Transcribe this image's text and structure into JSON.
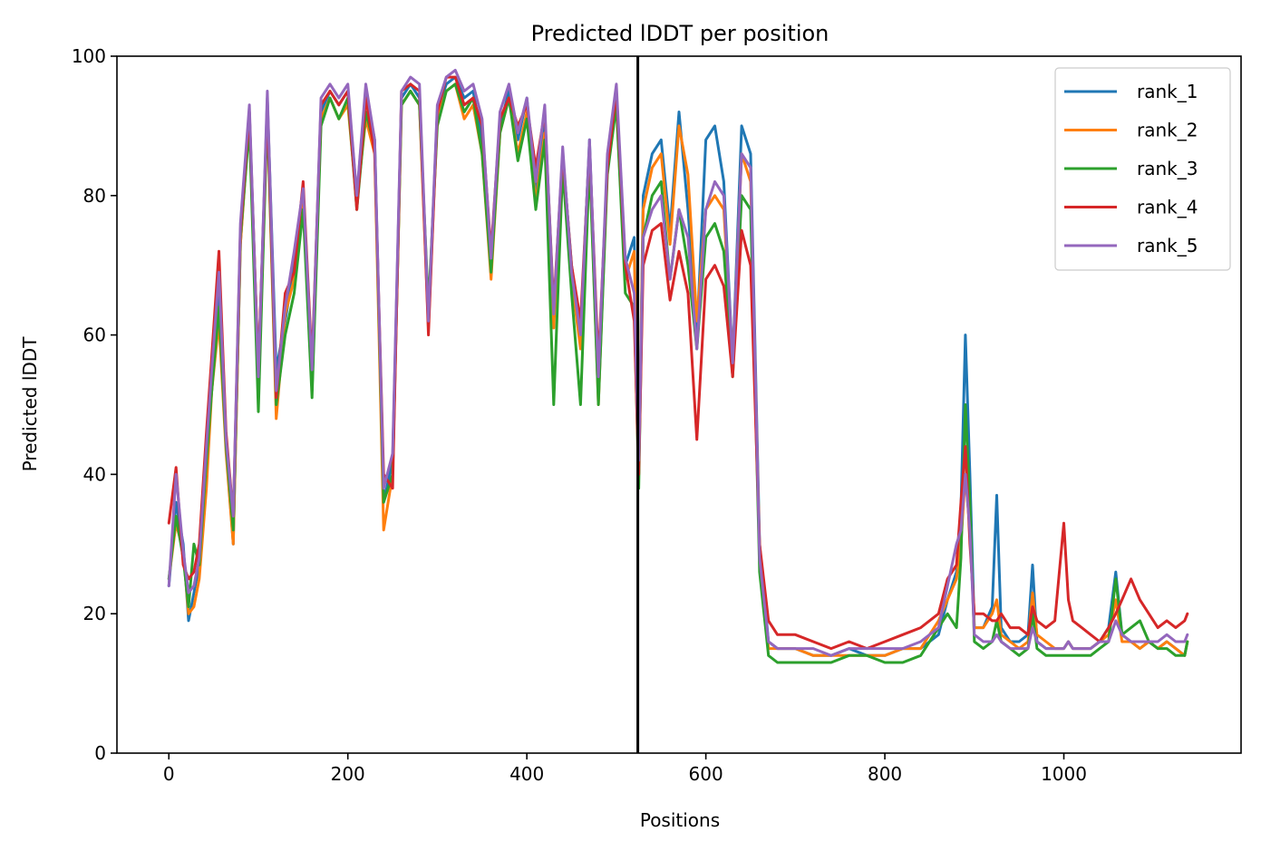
{
  "chart_data": {
    "type": "line",
    "title": "Predicted lDDT per position",
    "xlabel": "Positions",
    "ylabel": "Predicted lDDT",
    "xlim": [
      -58,
      1198
    ],
    "ylim": [
      0,
      100
    ],
    "x_ticks": [
      0,
      200,
      400,
      600,
      800,
      1000
    ],
    "y_ticks": [
      0,
      20,
      40,
      60,
      80,
      100
    ],
    "grid": false,
    "legend_position": "upper right",
    "divider": {
      "x": 524,
      "color": "#000000"
    },
    "x": [
      0,
      8,
      16,
      22,
      28,
      34,
      42,
      48,
      56,
      64,
      72,
      80,
      90,
      100,
      110,
      120,
      130,
      140,
      150,
      160,
      170,
      180,
      190,
      200,
      210,
      220,
      230,
      240,
      250,
      260,
      270,
      280,
      290,
      300,
      310,
      320,
      330,
      340,
      350,
      360,
      370,
      380,
      390,
      400,
      410,
      420,
      430,
      440,
      450,
      460,
      470,
      480,
      490,
      500,
      510,
      520,
      525,
      530,
      540,
      550,
      560,
      570,
      580,
      590,
      600,
      610,
      620,
      630,
      640,
      650,
      660,
      670,
      680,
      700,
      720,
      740,
      760,
      780,
      800,
      820,
      840,
      860,
      870,
      880,
      885,
      890,
      895,
      900,
      910,
      920,
      925,
      930,
      940,
      950,
      960,
      965,
      970,
      980,
      990,
      1000,
      1005,
      1010,
      1020,
      1030,
      1040,
      1050,
      1058,
      1065,
      1075,
      1085,
      1095,
      1105,
      1115,
      1125,
      1135,
      1138
    ],
    "series": [
      {
        "name": "rank_1",
        "color": "#1f77b4",
        "values": [
          24,
          36,
          30,
          19,
          23,
          27,
          45,
          52,
          66,
          44,
          30,
          73,
          92,
          53,
          94,
          55,
          62,
          70,
          80,
          52,
          92,
          95,
          93,
          95,
          80,
          95,
          88,
          36,
          42,
          94,
          96,
          94,
          62,
          92,
          96,
          97,
          94,
          95,
          88,
          70,
          90,
          95,
          88,
          94,
          80,
          91,
          62,
          86,
          70,
          60,
          88,
          52,
          85,
          95,
          70,
          74,
          40,
          80,
          86,
          88,
          75,
          92,
          78,
          60,
          88,
          90,
          82,
          56,
          90,
          86,
          30,
          16,
          15,
          15,
          14,
          14,
          15,
          14,
          14,
          15,
          15,
          17,
          22,
          26,
          35,
          60,
          40,
          18,
          18,
          21,
          37,
          18,
          16,
          16,
          17,
          27,
          16,
          15,
          15,
          15,
          16,
          15,
          15,
          15,
          16,
          18,
          26,
          17,
          16,
          15,
          16,
          15,
          16,
          15,
          14,
          16
        ]
      },
      {
        "name": "rank_2",
        "color": "#ff7f0e",
        "values": [
          25,
          33,
          29,
          20,
          21,
          25,
          38,
          52,
          62,
          43,
          30,
          73,
          91,
          55,
          92,
          48,
          63,
          68,
          79,
          54,
          91,
          94,
          91,
          93,
          79,
          91,
          86,
          32,
          40,
          93,
          95,
          93,
          61,
          91,
          95,
          96,
          91,
          93,
          86,
          68,
          89,
          94,
          86,
          92,
          79,
          89,
          61,
          85,
          68,
          58,
          86,
          50,
          84,
          93,
          68,
          72,
          40,
          78,
          84,
          86,
          73,
          90,
          83,
          62,
          78,
          80,
          78,
          56,
          86,
          82,
          29,
          15,
          15,
          15,
          14,
          14,
          14,
          14,
          14,
          15,
          15,
          19,
          22,
          25,
          30,
          40,
          32,
          18,
          18,
          20,
          22,
          17,
          16,
          15,
          16,
          23,
          17,
          16,
          15,
          15,
          16,
          15,
          15,
          15,
          16,
          17,
          22,
          16,
          16,
          15,
          16,
          15,
          16,
          15,
          14,
          16
        ]
      },
      {
        "name": "rank_3",
        "color": "#2ca02c",
        "values": [
          25,
          34,
          28,
          21,
          30,
          27,
          42,
          52,
          64,
          44,
          32,
          74,
          90,
          49,
          92,
          50,
          60,
          66,
          78,
          51,
          90,
          94,
          91,
          94,
          78,
          92,
          87,
          36,
          40,
          93,
          95,
          93,
          64,
          90,
          95,
          96,
          92,
          94,
          86,
          69,
          89,
          94,
          85,
          91,
          78,
          88,
          50,
          84,
          66,
          50,
          85,
          50,
          83,
          93,
          66,
          64,
          38,
          74,
          80,
          82,
          68,
          78,
          70,
          58,
          74,
          76,
          72,
          54,
          80,
          78,
          26,
          14,
          13,
          13,
          13,
          13,
          14,
          14,
          13,
          13,
          14,
          18,
          20,
          18,
          28,
          50,
          36,
          16,
          15,
          16,
          19,
          16,
          15,
          14,
          15,
          20,
          15,
          14,
          14,
          14,
          14,
          14,
          14,
          14,
          15,
          16,
          25,
          17,
          18,
          19,
          16,
          15,
          15,
          14,
          14,
          16
        ]
      },
      {
        "name": "rank_4",
        "color": "#d62728",
        "values": [
          33,
          41,
          27,
          25,
          26,
          30,
          46,
          57,
          72,
          46,
          34,
          75,
          92,
          55,
          93,
          51,
          66,
          69,
          82,
          56,
          93,
          95,
          93,
          95,
          78,
          94,
          86,
          40,
          38,
          95,
          96,
          95,
          60,
          92,
          97,
          97,
          93,
          94,
          90,
          72,
          91,
          94,
          90,
          93,
          84,
          92,
          64,
          86,
          70,
          62,
          87,
          56,
          84,
          95,
          70,
          62,
          40,
          70,
          75,
          76,
          65,
          72,
          66,
          45,
          68,
          70,
          67,
          54,
          75,
          70,
          30,
          19,
          17,
          17,
          16,
          15,
          16,
          15,
          16,
          17,
          18,
          20,
          25,
          27,
          36,
          44,
          30,
          20,
          20,
          19,
          19,
          20,
          18,
          18,
          17,
          21,
          19,
          18,
          19,
          33,
          22,
          19,
          18,
          17,
          16,
          18,
          20,
          22,
          25,
          22,
          20,
          18,
          19,
          18,
          19,
          20
        ]
      },
      {
        "name": "rank_5",
        "color": "#9467bd",
        "values": [
          24,
          40,
          29,
          23,
          24,
          28,
          44,
          55,
          69,
          45,
          34,
          76,
          93,
          54,
          95,
          52,
          64,
          72,
          81,
          55,
          94,
          96,
          94,
          96,
          80,
          96,
          88,
          38,
          43,
          95,
          97,
          96,
          62,
          93,
          97,
          98,
          95,
          96,
          91,
          71,
          92,
          96,
          89,
          94,
          82,
          93,
          63,
          87,
          69,
          60,
          88,
          54,
          86,
          96,
          71,
          66,
          42,
          74,
          78,
          80,
          68,
          78,
          74,
          58,
          78,
          82,
          80,
          56,
          86,
          84,
          28,
          16,
          15,
          15,
          15,
          14,
          15,
          15,
          15,
          15,
          16,
          18,
          24,
          30,
          32,
          40,
          32,
          17,
          16,
          16,
          17,
          16,
          15,
          15,
          15,
          18,
          16,
          15,
          15,
          15,
          16,
          15,
          15,
          15,
          16,
          16,
          19,
          17,
          16,
          16,
          16,
          16,
          17,
          16,
          16,
          17
        ]
      }
    ]
  }
}
